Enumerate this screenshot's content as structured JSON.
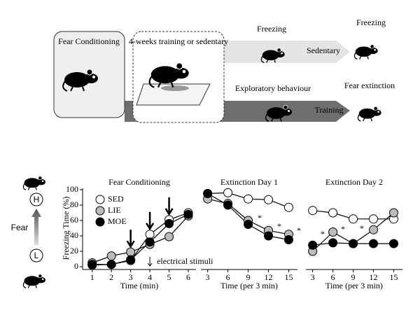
{
  "diagram": {
    "box1": "Fear Conditioning",
    "box2": "4-weeks training or sedentary",
    "freezing1": "Freezing",
    "sedentary": "Sedentary",
    "freezing2": "Freezing",
    "exploratory": "Exploratory behaviour",
    "training": "Training",
    "extinction": "Fear extinction",
    "high": "H",
    "fear": "Fear",
    "low": "L"
  },
  "chart_data": [
    {
      "type": "line",
      "title": "Fear Conditioning",
      "y_label": "Freezing Time (%)",
      "x_label": "Time (min)",
      "x": [
        1,
        2,
        3,
        4,
        5,
        6
      ],
      "xlim": [
        0.5,
        6.4
      ],
      "xticks": [
        1,
        2,
        3,
        4,
        5,
        6
      ],
      "ylim": [
        0,
        100
      ],
      "yticks": [
        0,
        20,
        40,
        60,
        80,
        100
      ],
      "arrows_x": [
        3,
        4,
        5
      ],
      "annotation": "electrical stimuli",
      "series": [
        {
          "name": "SED",
          "color": "#ffffff",
          "values": [
            2,
            3,
            8,
            42,
            61,
            70
          ]
        },
        {
          "name": "LIE",
          "color": "#bbbbbb",
          "values": [
            5,
            14,
            19,
            29,
            39,
            66
          ]
        },
        {
          "name": "MOE",
          "color": "#000000",
          "values": [
            3,
            3,
            9,
            32,
            56,
            68
          ]
        }
      ]
    },
    {
      "type": "line",
      "title": "Extinction Day 1",
      "x_label": "Time (per 3 min)",
      "x": [
        3,
        6,
        9,
        12,
        15
      ],
      "xlim": [
        2,
        16.3
      ],
      "xticks": [
        3,
        6,
        9,
        12,
        15
      ],
      "ylim": [
        0,
        100
      ],
      "annotations": [
        "*",
        "*",
        "*"
      ],
      "series": [
        {
          "name": "SED",
          "color": "#ffffff",
          "values": [
            95,
            96,
            88,
            87,
            77
          ]
        },
        {
          "name": "LIE",
          "color": "#bbbbbb",
          "values": [
            88,
            82,
            60,
            47,
            42
          ]
        },
        {
          "name": "MOE",
          "color": "#000000",
          "values": [
            95,
            80,
            55,
            40,
            35
          ]
        }
      ]
    },
    {
      "type": "line",
      "title": "Extinction Day 2",
      "x_label": "Time (per 3 min)",
      "x": [
        3,
        6,
        9,
        12,
        15
      ],
      "xlim": [
        2,
        16.3
      ],
      "xticks": [
        3,
        6,
        9,
        12,
        15
      ],
      "ylim": [
        0,
        100
      ],
      "annotations": [
        "*",
        "*",
        "*"
      ],
      "series": [
        {
          "name": "SED",
          "color": "#ffffff",
          "values": [
            73,
            70,
            62,
            62,
            62
          ]
        },
        {
          "name": "LIE",
          "color": "#bbbbbb",
          "values": [
            20,
            45,
            30,
            48,
            70
          ]
        },
        {
          "name": "MOE",
          "color": "#000000",
          "values": [
            28,
            31,
            30,
            30,
            30
          ]
        }
      ]
    }
  ]
}
